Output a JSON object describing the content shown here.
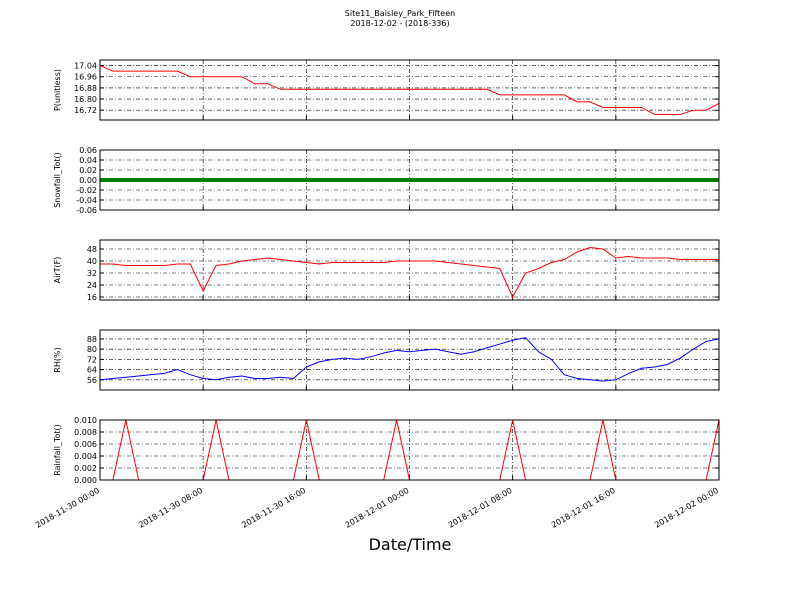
{
  "title": "Site11_Baisley_Park_Fifteen",
  "subtitle": "2018-12-02 - (2018-336)",
  "xlabel": "Date/Time",
  "chart_data": [
    {
      "type": "line",
      "ylabel": "P(unitless)",
      "ylim": [
        16.65,
        17.08
      ],
      "yticks": [
        16.72,
        {
          "value": 16.8,
          "label": "16.80"
        },
        16.88,
        16.96,
        17.04
      ],
      "x": [
        "2018-11-30 00:00",
        "2018-11-30 01:00",
        "2018-11-30 02:00",
        "2018-11-30 03:00",
        "2018-11-30 04:00",
        "2018-11-30 05:00",
        "2018-11-30 06:00",
        "2018-11-30 07:00",
        "2018-11-30 08:00",
        "2018-11-30 09:00",
        "2018-11-30 10:00",
        "2018-11-30 11:00",
        "2018-11-30 12:00",
        "2018-11-30 13:00",
        "2018-11-30 14:00",
        "2018-11-30 15:00",
        "2018-11-30 16:00",
        "2018-11-30 17:00",
        "2018-11-30 18:00",
        "2018-11-30 19:00",
        "2018-11-30 20:00",
        "2018-11-30 21:00",
        "2018-11-30 22:00",
        "2018-11-30 23:00",
        "2018-12-01 00:00",
        "2018-12-01 01:00",
        "2018-12-01 02:00",
        "2018-12-01 03:00",
        "2018-12-01 04:00",
        "2018-12-01 05:00",
        "2018-12-01 06:00",
        "2018-12-01 07:00",
        "2018-12-01 08:00",
        "2018-12-01 09:00",
        "2018-12-01 10:00",
        "2018-12-01 11:00",
        "2018-12-01 12:00",
        "2018-12-01 13:00",
        "2018-12-01 14:00",
        "2018-12-01 15:00",
        "2018-12-01 16:00",
        "2018-12-01 17:00",
        "2018-12-01 18:00",
        "2018-12-01 19:00",
        "2018-12-01 20:00",
        "2018-12-01 21:00",
        "2018-12-01 22:00",
        "2018-12-01 23:00",
        "2018-12-02 00:00"
      ],
      "series": [
        {
          "color": "#ff0000",
          "values": [
            17.04,
            17.0,
            17.0,
            17.0,
            17.0,
            17.0,
            17.0,
            16.96,
            16.96,
            16.96,
            16.96,
            16.96,
            16.91,
            16.91,
            16.87,
            16.87,
            16.87,
            16.87,
            16.87,
            16.87,
            16.87,
            16.87,
            16.87,
            16.87,
            16.87,
            16.87,
            16.87,
            16.87,
            16.87,
            16.87,
            16.87,
            16.83,
            16.83,
            16.83,
            16.83,
            16.83,
            16.83,
            16.78,
            16.78,
            16.74,
            16.74,
            16.74,
            16.74,
            16.69,
            16.69,
            16.69,
            16.72,
            16.72,
            16.77
          ]
        }
      ]
    },
    {
      "type": "line",
      "ylabel": "Snowfall_Tot()",
      "ylim": [
        -0.06,
        0.06
      ],
      "yticks": [
        -0.06,
        -0.04,
        -0.02,
        {
          "value": 0,
          "label": "0.00"
        },
        0.02,
        0.04,
        0.06
      ],
      "x": [
        "2018-11-30 00:00",
        "2018-11-30 01:00",
        "2018-11-30 02:00",
        "2018-11-30 03:00",
        "2018-11-30 04:00",
        "2018-11-30 05:00",
        "2018-11-30 06:00",
        "2018-11-30 07:00",
        "2018-11-30 08:00",
        "2018-11-30 09:00",
        "2018-11-30 10:00",
        "2018-11-30 11:00",
        "2018-11-30 12:00",
        "2018-11-30 13:00",
        "2018-11-30 14:00",
        "2018-11-30 15:00",
        "2018-11-30 16:00",
        "2018-11-30 17:00",
        "2018-11-30 18:00",
        "2018-11-30 19:00",
        "2018-11-30 20:00",
        "2018-11-30 21:00",
        "2018-11-30 22:00",
        "2018-11-30 23:00",
        "2018-12-01 00:00",
        "2018-12-01 01:00",
        "2018-12-01 02:00",
        "2018-12-01 03:00",
        "2018-12-01 04:00",
        "2018-12-01 05:00",
        "2018-12-01 06:00",
        "2018-12-01 07:00",
        "2018-12-01 08:00",
        "2018-12-01 09:00",
        "2018-12-01 10:00",
        "2018-12-01 11:00",
        "2018-12-01 12:00",
        "2018-12-01 13:00",
        "2018-12-01 14:00",
        "2018-12-01 15:00",
        "2018-12-01 16:00",
        "2018-12-01 17:00",
        "2018-12-01 18:00",
        "2018-12-01 19:00",
        "2018-12-01 20:00",
        "2018-12-01 21:00",
        "2018-12-01 22:00",
        "2018-12-01 23:00",
        "2018-12-02 00:00"
      ],
      "series": [
        {
          "color": "#008000",
          "values": [
            0,
            0,
            0,
            0,
            0,
            0,
            0,
            0,
            0,
            0,
            0,
            0,
            0,
            0,
            0,
            0,
            0,
            0,
            0,
            0,
            0,
            0,
            0,
            0,
            0,
            0,
            0,
            0,
            0,
            0,
            0,
            0,
            0,
            0,
            0,
            0,
            0,
            0,
            0,
            0,
            0,
            0,
            0,
            0,
            0,
            0,
            0,
            0,
            0
          ]
        }
      ]
    },
    {
      "type": "line",
      "ylabel": "AirT(F)",
      "ylim": [
        14,
        54
      ],
      "yticks": [
        16,
        24,
        32,
        40,
        48
      ],
      "x": [
        "2018-11-30 00:00",
        "2018-11-30 01:00",
        "2018-11-30 02:00",
        "2018-11-30 03:00",
        "2018-11-30 04:00",
        "2018-11-30 05:00",
        "2018-11-30 06:00",
        "2018-11-30 07:00",
        "2018-11-30 08:00",
        "2018-11-30 09:00",
        "2018-11-30 10:00",
        "2018-11-30 11:00",
        "2018-11-30 12:00",
        "2018-11-30 13:00",
        "2018-11-30 14:00",
        "2018-11-30 15:00",
        "2018-11-30 16:00",
        "2018-11-30 17:00",
        "2018-11-30 18:00",
        "2018-11-30 19:00",
        "2018-11-30 20:00",
        "2018-11-30 21:00",
        "2018-11-30 22:00",
        "2018-11-30 23:00",
        "2018-12-01 00:00",
        "2018-12-01 01:00",
        "2018-12-01 02:00",
        "2018-12-01 03:00",
        "2018-12-01 04:00",
        "2018-12-01 05:00",
        "2018-12-01 06:00",
        "2018-12-01 07:00",
        "2018-12-01 08:00",
        "2018-12-01 09:00",
        "2018-12-01 10:00",
        "2018-12-01 11:00",
        "2018-12-01 12:00",
        "2018-12-01 13:00",
        "2018-12-01 14:00",
        "2018-12-01 15:00",
        "2018-12-01 16:00",
        "2018-12-01 17:00",
        "2018-12-01 18:00",
        "2018-12-01 19:00",
        "2018-12-01 20:00",
        "2018-12-01 21:00",
        "2018-12-01 22:00",
        "2018-12-01 23:00",
        "2018-12-02 00:00"
      ],
      "series": [
        {
          "color": "#ff0000",
          "values": [
            38,
            38,
            37,
            37,
            37,
            37,
            38,
            38,
            20,
            37,
            38,
            40,
            41,
            42,
            41,
            40,
            39,
            38,
            39,
            39,
            39,
            39,
            39,
            40,
            40,
            40,
            40,
            39,
            38,
            37,
            36,
            35,
            16,
            32,
            35,
            39,
            41,
            46,
            49,
            48,
            42,
            43,
            42,
            42,
            42,
            41,
            41,
            41,
            41
          ]
        }
      ]
    },
    {
      "type": "line",
      "ylabel": "RH(%)",
      "ylim": [
        48,
        95
      ],
      "yticks": [
        56,
        64,
        72,
        80,
        88
      ],
      "x": [
        "2018-11-30 00:00",
        "2018-11-30 01:00",
        "2018-11-30 02:00",
        "2018-11-30 03:00",
        "2018-11-30 04:00",
        "2018-11-30 05:00",
        "2018-11-30 06:00",
        "2018-11-30 07:00",
        "2018-11-30 08:00",
        "2018-11-30 09:00",
        "2018-11-30 10:00",
        "2018-11-30 11:00",
        "2018-11-30 12:00",
        "2018-11-30 13:00",
        "2018-11-30 14:00",
        "2018-11-30 15:00",
        "2018-11-30 16:00",
        "2018-11-30 17:00",
        "2018-11-30 18:00",
        "2018-11-30 19:00",
        "2018-11-30 20:00",
        "2018-11-30 21:00",
        "2018-11-30 22:00",
        "2018-11-30 23:00",
        "2018-12-01 00:00",
        "2018-12-01 01:00",
        "2018-12-01 02:00",
        "2018-12-01 03:00",
        "2018-12-01 04:00",
        "2018-12-01 05:00",
        "2018-12-01 06:00",
        "2018-12-01 07:00",
        "2018-12-01 08:00",
        "2018-12-01 09:00",
        "2018-12-01 10:00",
        "2018-12-01 11:00",
        "2018-12-01 12:00",
        "2018-12-01 13:00",
        "2018-12-01 14:00",
        "2018-12-01 15:00",
        "2018-12-01 16:00",
        "2018-12-01 17:00",
        "2018-12-01 18:00",
        "2018-12-01 19:00",
        "2018-12-01 20:00",
        "2018-12-01 21:00",
        "2018-12-01 22:00",
        "2018-12-01 23:00",
        "2018-12-02 00:00"
      ],
      "series": [
        {
          "color": "#0000ff",
          "values": [
            56,
            57,
            58,
            59,
            60,
            61,
            64,
            60,
            57,
            56,
            58,
            59,
            57,
            57,
            58,
            57,
            66,
            70,
            72,
            73,
            72,
            74,
            77,
            79,
            78,
            79,
            80,
            78,
            76,
            78,
            81,
            84,
            87,
            89,
            78,
            72,
            60,
            57,
            56,
            55,
            56,
            61,
            65,
            66,
            68,
            73,
            80,
            86,
            88
          ]
        }
      ]
    },
    {
      "type": "line",
      "ylabel": "Rainfall_Tot()",
      "ylim": [
        0,
        0.01
      ],
      "yticks": [
        {
          "value": 0,
          "label": "0.000"
        },
        {
          "value": 0.002,
          "label": "0.002"
        },
        {
          "value": 0.004,
          "label": "0.004"
        },
        {
          "value": 0.006,
          "label": "0.006"
        },
        {
          "value": 0.008,
          "label": "0.008"
        },
        {
          "value": 0.01,
          "label": "0.010"
        }
      ],
      "xticks": [
        "2018-11-30 00:00",
        "2018-11-30 08:00",
        "2018-11-30 16:00",
        "2018-12-01 00:00",
        "2018-12-01 08:00",
        "2018-12-01 16:00",
        "2018-12-02 00:00"
      ],
      "x": [
        "2018-11-30 00:00",
        "2018-11-30 01:00",
        "2018-11-30 02:00",
        "2018-11-30 03:00",
        "2018-11-30 04:00",
        "2018-11-30 05:00",
        "2018-11-30 06:00",
        "2018-11-30 07:00",
        "2018-11-30 08:00",
        "2018-11-30 09:00",
        "2018-11-30 10:00",
        "2018-11-30 11:00",
        "2018-11-30 12:00",
        "2018-11-30 13:00",
        "2018-11-30 14:00",
        "2018-11-30 15:00",
        "2018-11-30 16:00",
        "2018-11-30 17:00",
        "2018-11-30 18:00",
        "2018-11-30 19:00",
        "2018-11-30 20:00",
        "2018-11-30 21:00",
        "2018-11-30 22:00",
        "2018-11-30 23:00",
        "2018-12-01 00:00",
        "2018-12-01 01:00",
        "2018-12-01 02:00",
        "2018-12-01 03:00",
        "2018-12-01 04:00",
        "2018-12-01 05:00",
        "2018-12-01 06:00",
        "2018-12-01 07:00",
        "2018-12-01 08:00",
        "2018-12-01 09:00",
        "2018-12-01 10:00",
        "2018-12-01 11:00",
        "2018-12-01 12:00",
        "2018-12-01 13:00",
        "2018-12-01 14:00",
        "2018-12-01 15:00",
        "2018-12-01 16:00",
        "2018-12-01 17:00",
        "2018-12-01 18:00",
        "2018-12-01 19:00",
        "2018-12-01 20:00",
        "2018-12-01 21:00",
        "2018-12-01 22:00",
        "2018-12-01 23:00",
        "2018-12-02 00:00"
      ],
      "series": [
        {
          "color": "#ff0000",
          "values": [
            0,
            0,
            0.01,
            0,
            0,
            0,
            0,
            0,
            0,
            0.01,
            0,
            0,
            0,
            0,
            0,
            0,
            0.01,
            0,
            0,
            0,
            0,
            0,
            0,
            0.01,
            0,
            0,
            0,
            0,
            0,
            0,
            0,
            0,
            0.01,
            0,
            0,
            0,
            0,
            0,
            0,
            0.01,
            0,
            0,
            0,
            0,
            0,
            0,
            0,
            0,
            0.01
          ]
        }
      ]
    }
  ]
}
